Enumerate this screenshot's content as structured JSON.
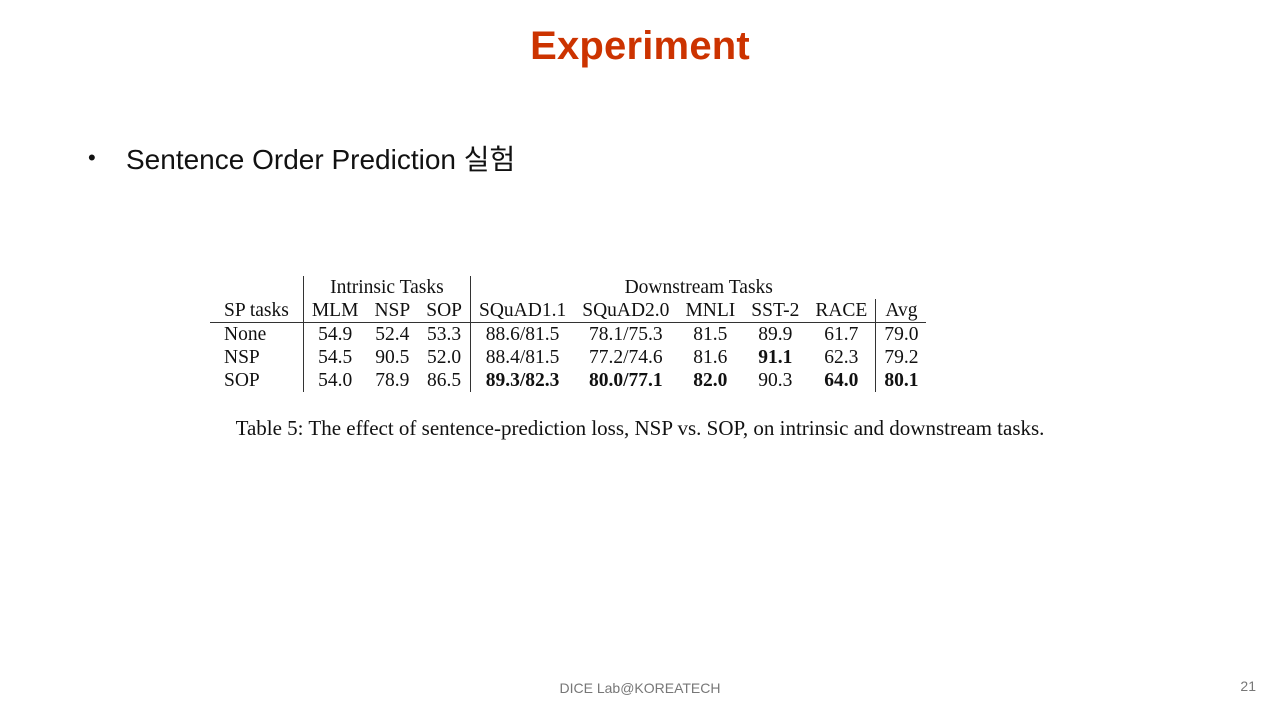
{
  "slide": {
    "title": "Experiment"
  },
  "bullet": {
    "marker": "•",
    "text": "Sentence Order Prediction 실험"
  },
  "table": {
    "group_headers": {
      "intrinsic": "Intrinsic Tasks",
      "downstream": "Downstream Tasks"
    },
    "columns": [
      "SP tasks",
      "MLM",
      "NSP",
      "SOP",
      "SQuAD1.1",
      "SQuAD2.0",
      "MNLI",
      "SST-2",
      "RACE",
      "Avg"
    ],
    "rows": [
      {
        "task": "None",
        "mlm": "54.9",
        "nsp": "52.4",
        "sop": "53.3",
        "squad11": "88.6/81.5",
        "squad20": "78.1/75.3",
        "mnli": "81.5",
        "sst2": "89.9",
        "race": "61.7",
        "avg": "79.0"
      },
      {
        "task": "NSP",
        "mlm": "54.5",
        "nsp": "90.5",
        "sop": "52.0",
        "squad11": "88.4/81.5",
        "squad20": "77.2/74.6",
        "mnli": "81.6",
        "sst2": "91.1",
        "race": "62.3",
        "avg": "79.2"
      },
      {
        "task": "SOP",
        "mlm": "54.0",
        "nsp": "78.9",
        "sop": "86.5",
        "squad11": "89.3/82.3",
        "squad20": "80.0/77.1",
        "mnli": "82.0",
        "sst2": "90.3",
        "race": "64.0",
        "avg": "80.1"
      }
    ],
    "caption": "Table 5: The effect of sentence-prediction loss, NSP vs. SOP, on intrinsic and downstream tasks."
  },
  "footer": {
    "lab": "DICE Lab@KOREATECH",
    "page": "21"
  }
}
